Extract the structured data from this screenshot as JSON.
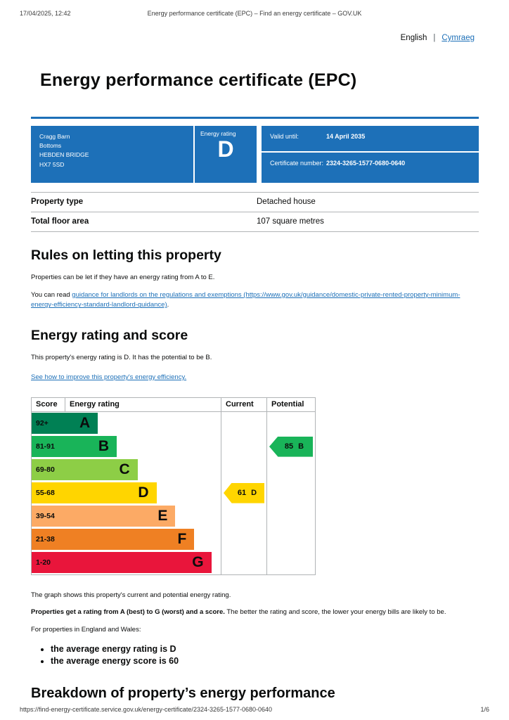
{
  "print_header": {
    "datetime": "17/04/2025, 12:42",
    "title": "Energy performance certificate (EPC) – Find an energy certificate – GOV.UK"
  },
  "print_footer": {
    "url": "https://find-energy-certificate.service.gov.uk/energy-certificate/2324-3265-1577-0680-0640",
    "page": "1/6"
  },
  "language": {
    "english": "English",
    "divider": "|",
    "cymraeg": "Cymraeg"
  },
  "page_title": "Energy performance certificate (EPC)",
  "summary_box": {
    "address_lines": [
      "Cragg Barn",
      "Bottoms",
      "HEBDEN BRIDGE",
      "HX7 5SD"
    ],
    "energy_rating_label": "Energy rating",
    "energy_rating": "D",
    "valid_until_label": "Valid until:",
    "valid_until": "14 April 2035",
    "certificate_number_label": "Certificate number:",
    "certificate_number": "2324-3265-1577-0680-0640",
    "box_color": "#1d70b8"
  },
  "property_table": {
    "rows": [
      {
        "label": "Property type",
        "value": "Detached house"
      },
      {
        "label": "Total floor area",
        "value": "107 square metres"
      }
    ]
  },
  "rules_section": {
    "heading": "Rules on letting this property",
    "para1": "Properties can be let if they have an energy rating from A to E.",
    "para2_prefix": "You can read ",
    "para2_link": "guidance for landlords on the regulations and exemptions (https://www.gov.uk/guidance/domestic-private-rented-property-minimum-energy-efficiency-standard-landlord-guidance)",
    "para2_suffix": "."
  },
  "rating_section": {
    "heading": "Energy rating and score",
    "para1": "This property's energy rating is D. It has the potential to be B.",
    "improve_link": "See how to improve this property's energy efficiency."
  },
  "chart_data": {
    "type": "epc-rating-bands",
    "headers": [
      "Score",
      "Energy rating",
      "Current",
      "Potential"
    ],
    "bands": [
      {
        "score": "92+",
        "letter": "A",
        "color": "#008054",
        "width_pct": 35
      },
      {
        "score": "81-91",
        "letter": "B",
        "color": "#19b459",
        "width_pct": 45
      },
      {
        "score": "69-80",
        "letter": "C",
        "color": "#8dce46",
        "width_pct": 56
      },
      {
        "score": "55-68",
        "letter": "D",
        "color": "#ffd500",
        "width_pct": 66
      },
      {
        "score": "39-54",
        "letter": "E",
        "color": "#fcaa65",
        "width_pct": 76
      },
      {
        "score": "21-38",
        "letter": "F",
        "color": "#ef8023",
        "width_pct": 86
      },
      {
        "score": "1-20",
        "letter": "G",
        "color": "#e9153b",
        "width_pct": 95
      }
    ],
    "current": {
      "score": "61",
      "letter": "D",
      "color": "#ffd500",
      "band_index": 3
    },
    "potential": {
      "score": "85",
      "letter": "B",
      "color": "#19b459",
      "band_index": 1
    }
  },
  "chart_notes": {
    "para1": "The graph shows this property's current and potential energy rating.",
    "para2_bold": "Properties get a rating from A (best) to G (worst) and a score.",
    "para2_rest": " The better the rating and score, the lower your energy bills are likely to be.",
    "para3": "For properties in England and Wales:",
    "bullets": [
      "the average energy rating is D",
      "the average energy score is 60"
    ]
  },
  "breakdown_section": {
    "heading": "Breakdown of property’s energy performance"
  }
}
